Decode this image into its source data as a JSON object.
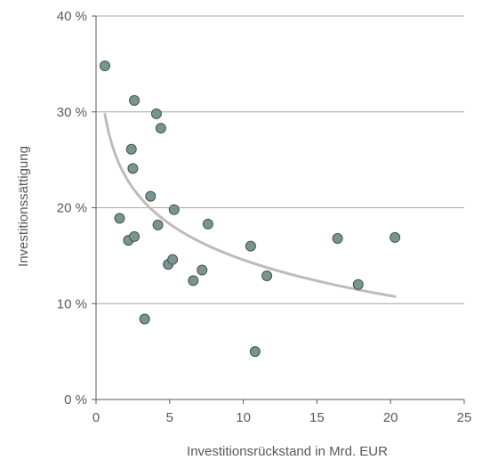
{
  "chart_data": {
    "type": "scatter",
    "xlabel": "Investitionsrückstand in Mrd. EUR",
    "ylabel": "Investitionssättigung",
    "xlim": [
      0,
      25
    ],
    "ylim": [
      0,
      40
    ],
    "x_ticks": [
      0,
      5,
      10,
      15,
      20,
      25
    ],
    "y_ticks": [
      0,
      10,
      20,
      30,
      40
    ],
    "x_tick_labels": [
      "0",
      "5",
      "10",
      "15",
      "20",
      "25"
    ],
    "y_tick_labels": [
      "0 %",
      "10 %",
      "20 %",
      "30 %",
      "40 %"
    ],
    "grid": "horizontal",
    "legend": "none",
    "colors": {
      "points": "#7a9490",
      "point_edge": "#3f5450",
      "trendline": "#bfbbb6",
      "grid": "#a6a6a6",
      "axis": "#595959"
    },
    "points": [
      {
        "x": 0.6,
        "y": 34.8
      },
      {
        "x": 1.6,
        "y": 18.9
      },
      {
        "x": 2.2,
        "y": 16.6
      },
      {
        "x": 2.4,
        "y": 26.1
      },
      {
        "x": 2.5,
        "y": 24.1
      },
      {
        "x": 2.6,
        "y": 31.2
      },
      {
        "x": 2.6,
        "y": 17.0
      },
      {
        "x": 3.3,
        "y": 8.4
      },
      {
        "x": 3.7,
        "y": 21.2
      },
      {
        "x": 4.1,
        "y": 29.8
      },
      {
        "x": 4.2,
        "y": 18.2
      },
      {
        "x": 4.4,
        "y": 28.3
      },
      {
        "x": 4.9,
        "y": 14.1
      },
      {
        "x": 5.2,
        "y": 14.6
      },
      {
        "x": 5.3,
        "y": 19.8
      },
      {
        "x": 6.6,
        "y": 12.4
      },
      {
        "x": 7.2,
        "y": 13.5
      },
      {
        "x": 7.6,
        "y": 18.3
      },
      {
        "x": 10.5,
        "y": 16.0
      },
      {
        "x": 10.8,
        "y": 5.0
      },
      {
        "x": 11.6,
        "y": 12.9
      },
      {
        "x": 16.4,
        "y": 16.8
      },
      {
        "x": 17.8,
        "y": 12.0
      },
      {
        "x": 20.3,
        "y": 16.9
      }
    ],
    "trendline": {
      "type": "logarithmic",
      "a": 27.0,
      "b": -5.4,
      "x_range": [
        0.6,
        20.3
      ]
    }
  }
}
